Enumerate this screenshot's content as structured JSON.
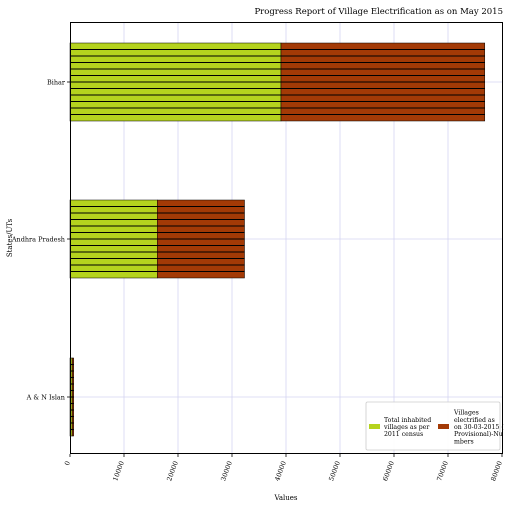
{
  "chart_data": {
    "type": "bar",
    "orientation": "horizontal",
    "stacked": true,
    "title": "Progress Report of Village Electrification as on May 2015",
    "xlabel": "Values",
    "ylabel": "States/UTs",
    "categories": [
      "A & N Islands",
      "Andhra Pradesh",
      "Bihar"
    ],
    "category_tick_labels": [
      "A & N Islan",
      "Andhra Pradesh",
      "Bihar"
    ],
    "series": [
      {
        "name": "Total inhabited villages as per 2011 census",
        "legend_lines": [
          "Total inhabited",
          "villages as per",
          "2011 census"
        ],
        "color": "#b5d31e",
        "values": [
          396,
          16158,
          39073
        ]
      },
      {
        "name": "Villages electrified as on 30-03-2015 ( Provisional)-Numbers",
        "legend_lines": [
          "Villages",
          "electrified as",
          "on 30-03-2015 (",
          "Provisional)-Nu",
          "mbers"
        ],
        "color": "#a33a06",
        "values": [
          288,
          16158,
          37735
        ]
      }
    ],
    "xlim": [
      0,
      80000
    ],
    "xticks": [
      "0",
      "10000",
      "20000",
      "30000",
      "40000",
      "50000",
      "60000",
      "70000",
      "80000"
    ],
    "grid": true,
    "legend_position": "lower-right",
    "hatch": "horizontal-lines"
  }
}
